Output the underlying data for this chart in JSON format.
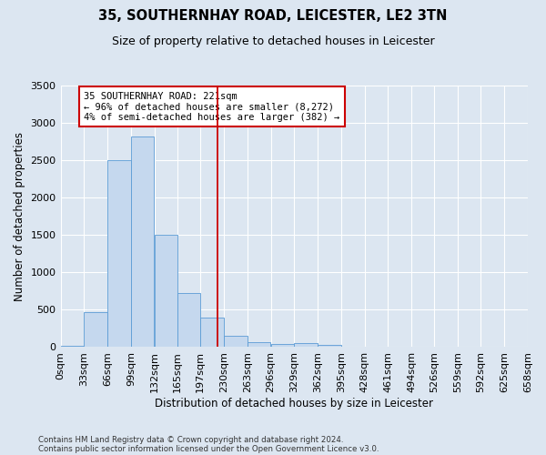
{
  "title": "35, SOUTHERNHAY ROAD, LEICESTER, LE2 3TN",
  "subtitle": "Size of property relative to detached houses in Leicester",
  "xlabel": "Distribution of detached houses by size in Leicester",
  "ylabel": "Number of detached properties",
  "footnote1": "Contains HM Land Registry data © Crown copyright and database right 2024.",
  "footnote2": "Contains public sector information licensed under the Open Government Licence v3.0.",
  "annotation_title": "35 SOUTHERNHAY ROAD: 221sqm",
  "annotation_line1": "← 96% of detached houses are smaller (8,272)",
  "annotation_line2": "4% of semi-detached houses are larger (382) →",
  "property_size": 221,
  "bin_edges": [
    0,
    33,
    66,
    99,
    132,
    165,
    197,
    230,
    263,
    296,
    329,
    362,
    395,
    428,
    461,
    494,
    526,
    559,
    592,
    625,
    658
  ],
  "bar_heights": [
    20,
    470,
    2500,
    2820,
    1500,
    730,
    390,
    150,
    65,
    40,
    50,
    30,
    0,
    0,
    0,
    0,
    0,
    0,
    0,
    0
  ],
  "bar_color": "#c5d8ee",
  "bar_edge_color": "#5b9bd5",
  "vline_color": "#cc0000",
  "annotation_box_color": "#cc0000",
  "fig_bg_color": "#dce6f1",
  "plot_bg_color": "#dce6f1",
  "ylim": [
    0,
    3500
  ],
  "yticks": [
    0,
    500,
    1000,
    1500,
    2000,
    2500,
    3000,
    3500
  ],
  "tick_label_size": 8,
  "title_fontsize": 10.5,
  "subtitle_fontsize": 9,
  "xlabel_fontsize": 8.5,
  "ylabel_fontsize": 8.5,
  "annotation_fontsize": 7.5
}
